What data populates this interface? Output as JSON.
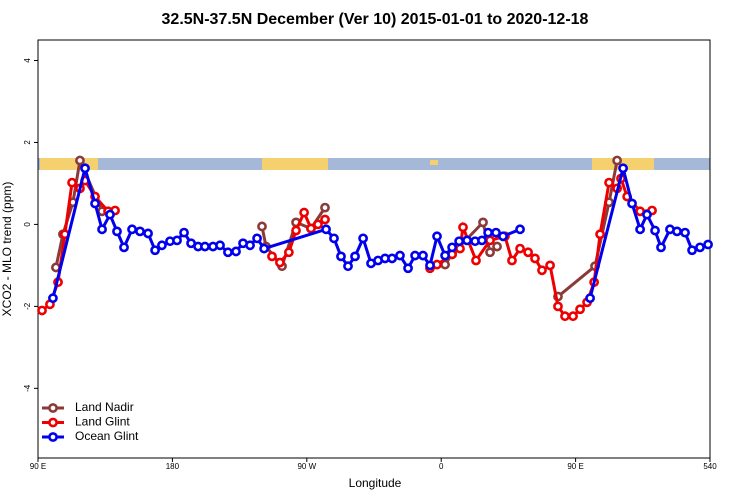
{
  "chart_data": {
    "type": "line",
    "title": "32.5N-37.5N December (Ver 10)   2015-01-01 to 2020-12-18",
    "xlabel": "Longitude",
    "ylabel": "XCO2 - MLO trend (ppm)",
    "xlim": [
      90,
      540
    ],
    "ylim": [
      -5.7,
      4.5
    ],
    "xticks": [
      {
        "value": 90,
        "label": "90 E"
      },
      180,
      {
        "value": 270,
        "label": "90 W"
      },
      {
        "value": 360,
        "label": "0"
      },
      {
        "value": 450,
        "label": "90 E"
      },
      540
    ],
    "yticks": [
      -4,
      -2,
      0,
      2,
      4
    ],
    "legend": "lower left",
    "series": [
      {
        "name": "Land Nadir",
        "color": "#8b3a3a",
        "x": [
          102,
          106.7,
          113.4,
          118.1,
          132.9,
          190,
          240,
          242.7,
          253.4,
          262.8,
          272.8,
          282.2,
          320,
          362.6,
          367.3,
          388,
          392.7,
          397.4,
          420,
          438.2,
          463,
          472.4,
          477.8
        ],
        "values": [
          -1.05,
          -0.24,
          0.54,
          1.56,
          0.32,
          null,
          -0.05,
          -0.54,
          -1.02,
          0.05,
          -0.1,
          0.41,
          null,
          -0.98,
          -0.73,
          0.05,
          -0.68,
          -0.54,
          null,
          -1.76,
          -1.02,
          0.54,
          1.56
        ]
      },
      {
        "name": "Land Glint",
        "color": "#ee0000",
        "x": [
          92.7,
          98,
          103.4,
          108,
          112.8,
          118.1,
          121.5,
          128.2,
          136.9,
          141.6,
          190,
          246.7,
          252,
          258,
          262.8,
          268.2,
          272.8,
          277.5,
          282.2,
          320,
          352.5,
          357.2,
          367.3,
          372.6,
          374.6,
          383.3,
          392.7,
          402.7,
          407.4,
          412.8,
          418.2,
          422.8,
          427.5,
          432.9,
          438.2,
          442.9,
          448.3,
          453,
          457.7,
          462.4,
          466.4,
          472.4,
          477.8,
          480.4,
          484.5,
          493.2,
          501.2
        ],
        "values": [
          -2.1,
          -1.95,
          -1.41,
          -0.24,
          1.02,
          0.88,
          1.07,
          0.68,
          0.32,
          0.34,
          null,
          -0.78,
          -0.93,
          -0.68,
          -0.15,
          0.29,
          -0.1,
          0.0,
          0.12,
          null,
          -1.07,
          -0.98,
          -0.73,
          -0.59,
          -0.07,
          -0.88,
          -0.39,
          -0.29,
          -0.88,
          -0.59,
          -0.68,
          -0.83,
          -1.12,
          -1.0,
          -2.0,
          -2.24,
          -2.24,
          -2.07,
          -1.9,
          -1.41,
          -0.24,
          1.02,
          0.88,
          1.12,
          0.68,
          0.32,
          0.34
        ]
      },
      {
        "name": "Ocean Glint",
        "color": "#0000ee",
        "x": [
          100,
          121.5,
          128.2,
          132.9,
          138.2,
          142.9,
          147.6,
          153,
          158.3,
          163.7,
          168.4,
          173,
          178.4,
          183.1,
          187.8,
          192.5,
          197.2,
          201.8,
          207.2,
          211.9,
          217.2,
          222.6,
          227.3,
          232,
          236.7,
          241.4,
          282.9,
          288.2,
          292.9,
          297.6,
          302.3,
          307.7,
          313,
          317.7,
          322.4,
          327.1,
          332.4,
          337.8,
          342.5,
          347.8,
          352.5,
          357.2,
          362.6,
          367.3,
          372,
          377.3,
          382.7,
          387.3,
          391.4,
          396.7,
          401.4,
          412.8,
          440,
          459.7,
          481.8,
          487.8,
          493.2,
          497.8,
          503.2,
          507.2,
          513.2,
          517.9,
          523.3,
          528,
          533.3,
          538.7
        ],
        "values": [
          -1.8,
          1.37,
          0.51,
          -0.12,
          0.24,
          -0.17,
          -0.56,
          -0.12,
          -0.17,
          -0.22,
          -0.63,
          -0.51,
          -0.41,
          -0.39,
          -0.2,
          -0.46,
          -0.54,
          -0.54,
          -0.54,
          -0.51,
          -0.68,
          -0.66,
          -0.46,
          -0.51,
          -0.34,
          -0.59,
          -0.12,
          -0.34,
          -0.78,
          -1.02,
          -0.78,
          -0.34,
          -0.95,
          -0.88,
          -0.83,
          -0.83,
          -0.76,
          -1.07,
          -0.76,
          -0.76,
          -1.0,
          -0.29,
          -0.76,
          -0.56,
          -0.41,
          -0.39,
          -0.41,
          -0.39,
          -0.2,
          -0.2,
          -0.29,
          -0.12,
          null,
          -1.8,
          1.37,
          0.51,
          -0.12,
          0.24,
          -0.15,
          -0.56,
          -0.12,
          -0.17,
          -0.2,
          -0.63,
          -0.56,
          -0.49
        ]
      }
    ]
  }
}
